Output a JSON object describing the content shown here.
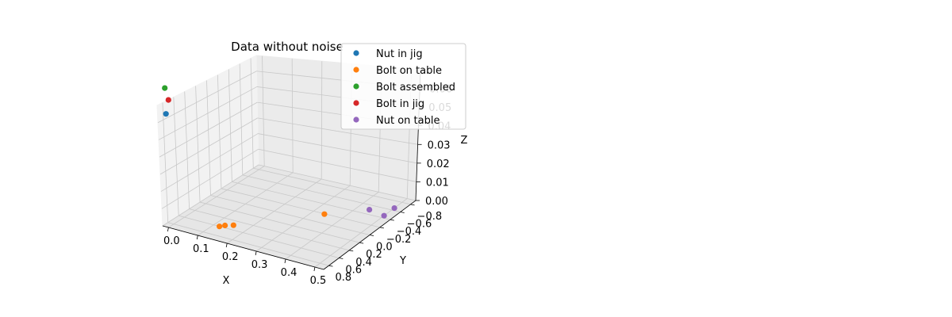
{
  "chart_data": {
    "type": "scatter",
    "projection": "3d",
    "title": "Data without noise",
    "xlabel": "X",
    "ylabel": "Y",
    "zlabel": "Z",
    "xlim": [
      -0.02,
      0.53
    ],
    "ylim": [
      -0.9,
      0.9
    ],
    "zlim": [
      0.0,
      0.07
    ],
    "xticks": [
      "0.0",
      "0.1",
      "0.2",
      "0.3",
      "0.4",
      "0.5"
    ],
    "yticks": [
      "−0.8",
      "−0.6",
      "−0.4",
      "−0.2",
      "0.0",
      "0.2",
      "0.4",
      "0.6",
      "0.8"
    ],
    "zticks": [
      "0.00",
      "0.01",
      "0.02",
      "0.03",
      "0.04",
      "0.05",
      "0.06"
    ],
    "grid": true,
    "legend_position": "top-right",
    "series": [
      {
        "name": "Nut in jig",
        "color": "#1f77b4",
        "points": [
          [
            0.0,
            0.85,
            0.065
          ]
        ]
      },
      {
        "name": "Bolt on table",
        "color": "#ff7f0e",
        "points": [
          [
            0.12,
            0.6,
            0.0
          ],
          [
            0.13,
            0.55,
            0.0
          ],
          [
            0.15,
            0.5,
            0.0
          ],
          [
            0.44,
            0.35,
            0.016
          ]
        ]
      },
      {
        "name": "Bolt assembled",
        "color": "#2ca02c",
        "points": [
          [
            0.0,
            0.85,
            0.08
          ]
        ]
      },
      {
        "name": "Bolt in jig",
        "color": "#d62728",
        "points": [
          [
            0.02,
            0.9,
            0.075
          ]
        ]
      },
      {
        "name": "Nut on table",
        "color": "#9467bd",
        "points": [
          [
            0.44,
            -0.5,
            0.0
          ],
          [
            0.5,
            -0.65,
            0.0
          ],
          [
            0.5,
            -0.45,
            0.0
          ]
        ]
      }
    ]
  }
}
